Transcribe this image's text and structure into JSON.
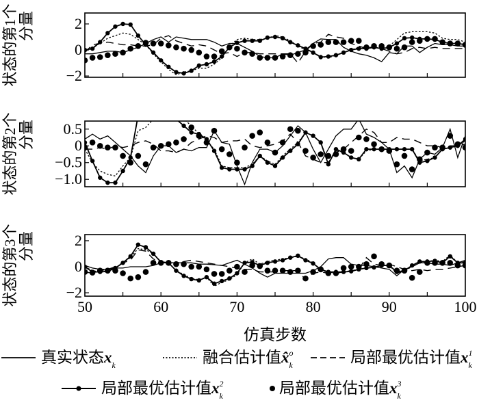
{
  "chart_data": {
    "type": "line",
    "xlabel": "仿真步数",
    "x_range": [
      50,
      100
    ],
    "x_ticks": [
      "50",
      "60",
      "70",
      "80",
      "90",
      "100"
    ],
    "legend_placement": "bottom",
    "legend": [
      {
        "key": "true",
        "label": "真实状态",
        "sym": "x",
        "sup": "",
        "sub": "k",
        "style": "solid"
      },
      {
        "key": "fused",
        "label": "融合估计值",
        "sym": "x̂",
        "sup": "o",
        "sub": "k",
        "style": "dotted"
      },
      {
        "key": "x1",
        "label": "局部最优估计值",
        "sym": "x",
        "sup": "1",
        "sub": "k",
        "style": "dashed"
      },
      {
        "key": "x2",
        "label": "局部最优估计值",
        "sym": "x",
        "sup": "2",
        "sub": "k",
        "style": "line-dot"
      },
      {
        "key": "x3",
        "label": "局部最优估计值",
        "sym": "x",
        "sup": "3",
        "sub": "k",
        "style": "dot"
      }
    ],
    "panels": [
      {
        "ylabel_line1": "状态的第1个",
        "ylabel_line2": "分量",
        "ylim": [
          -2.1,
          2.84
        ],
        "y_ticks": [
          {
            "v": 2,
            "t": "2"
          },
          {
            "v": 0,
            "t": "0"
          },
          {
            "v": -2,
            "t": "−2"
          }
        ],
        "series": {
          "true": [
            -0.3,
            -0.3,
            -0.2,
            -0.1,
            -0.1,
            -0.2,
            0,
            0.2,
            0.5,
            0.8,
            1.0,
            0.6,
            1.0,
            0.9,
            0.8,
            0.8,
            0.8,
            0.6,
            0.3,
            0.5,
            0.5,
            0.2,
            -0.1,
            -0.5,
            -0.6,
            -0.6,
            -0.3,
            -0.4,
            -0.2,
            0,
            0.5,
            0.85,
            0.8,
            0.8,
            0.2,
            -0.1,
            -0.3,
            -0.4,
            -0.6,
            -0.9,
            -0.2,
            -0.3,
            0.3,
            0.3,
            -0.2,
            0.2,
            0.5,
            0.4,
            0.4,
            0.3,
            0.3
          ],
          "fused": [
            0,
            0.2,
            0.5,
            0.9,
            1.1,
            1.3,
            1.2,
            0.8,
            0.4,
            -0.3,
            -0.9,
            -1.5,
            -1.9,
            -1.7,
            -1.6,
            -1.4,
            -1.4,
            -1.1,
            -0.6,
            0.3,
            0.8,
            0.9,
            0.8,
            0.8,
            0.9,
            1.1,
            1.0,
            0.7,
            0.3,
            0,
            -0.2,
            -0.5,
            -0.6,
            -0.4,
            -0.2,
            0,
            0.2,
            0.2,
            0.2,
            0.1,
            0.3,
            0.8,
            1.3,
            1.4,
            1.4,
            1.4,
            1.3,
            0.9,
            0.8,
            0.8,
            0.6
          ],
          "x1": [
            -0.2,
            0.4,
            0.5,
            0.6,
            0.5,
            0.4,
            0.4,
            0.3,
            0.3,
            0.4,
            0.9,
            1.1,
            0.7,
            0.5,
            0.3,
            0.4,
            0.3,
            0,
            -0.3,
            -0.2,
            -0.5,
            -0.2,
            -0.2,
            -0.3,
            -0.3,
            -0.3,
            -0.3,
            -0.3,
            -1.0,
            -0.1,
            0.5,
            0.6,
            1.2,
            1.0,
            0.9,
            0.5,
            0.3,
            0.1,
            0.2,
            0.1,
            -0.1,
            -0.3,
            -0.2,
            0.1,
            0.2,
            0.1,
            0.2,
            0.1,
            0.1,
            0.1,
            0.1
          ],
          "x2": [
            0,
            0.1,
            0.6,
            1.3,
            1.8,
            2.0,
            1.95,
            1.1,
            0.4,
            -0.2,
            -0.8,
            -1.3,
            -1.7,
            -1.8,
            -1.6,
            -1.2,
            -1.1,
            -0.9,
            -0.5,
            0.2,
            0.55,
            0.7,
            0.7,
            0.7,
            0.95,
            1.0,
            0.9,
            0.6,
            0.35,
            0.1,
            -0.2,
            -0.55,
            -0.5,
            -0.4,
            -0.2,
            0,
            0.1,
            0.1,
            0.2,
            0.1,
            0.2,
            0.5,
            0.9,
            0.95,
            0.85,
            0.85,
            0.8,
            0.6,
            0.5,
            0.5,
            0.4
          ],
          "x3": [
            -0.8,
            -0.6,
            -0.55,
            -0.4,
            -0.3,
            -0.2,
            0.1,
            0.3,
            0.55,
            0.5,
            0.5,
            0.35,
            0.2,
            0.1,
            0,
            -0.2,
            -0.5,
            -0.5,
            -0.1,
            0.2,
            0.1,
            -0.2,
            -0.3,
            -0.6,
            -0.6,
            -0.6,
            -0.5,
            -0.4,
            -0.3,
            -0.2,
            0.3,
            0.4,
            0.6,
            0.6,
            0.6,
            0.7,
            0.7,
            0.2,
            0.3,
            0.3,
            0.2,
            0.1,
            0.2,
            0.6,
            0.7,
            0.85,
            0.85,
            0.6,
            0.5,
            0.5,
            0.4
          ]
        }
      },
      {
        "ylabel_line1": "状态的第2个",
        "ylabel_line2": "分量",
        "ylim": [
          -1.22,
          0.74
        ],
        "y_ticks": [
          {
            "v": 0.5,
            "t": "0.5"
          },
          {
            "v": 0,
            "t": "0"
          },
          {
            "v": -0.5,
            "t": "−0.5"
          },
          {
            "v": -1,
            "t": "−1.0"
          }
        ],
        "series": {
          "true": [
            0.2,
            0.35,
            0.2,
            0.3,
            0.1,
            -0.1,
            -0.3,
            -0.6,
            -0.8,
            -0.3,
            0,
            0,
            -0.2,
            -0.1,
            -0.15,
            -0.05,
            -0.05,
            0.45,
            0.1,
            0.05,
            -0.6,
            -1.15,
            -0.5,
            -0.1,
            -0.1,
            -0.2,
            0,
            0.3,
            0.6,
            0.4,
            -0.1,
            -0.5,
            -0.1,
            0.3,
            0.5,
            0.5,
            0.8,
            0.35,
            0.25,
            0.1,
            -0.1,
            -0.8,
            -0.6,
            -0.95,
            -0.4,
            -0.2,
            -0.25,
            -0.05,
            0.5,
            -0.35,
            0.3
          ],
          "fused": [
            -0.1,
            -0.5,
            -0.75,
            -0.85,
            -0.9,
            -0.6,
            -0.35,
            0.45,
            0.55,
            0.8,
            1.0,
            1.0,
            0.9,
            0.8,
            0.6,
            0.35,
            0.15,
            -0.1,
            -0.6,
            -0.65,
            -0.65,
            -0.65,
            -0.55,
            -0.3,
            -0.45,
            -0.55,
            -0.3,
            -0.1,
            0.1,
            0.4,
            0.3,
            0.1,
            -0.5,
            -0.15,
            -0.2,
            -0.35,
            -0.4,
            -0.15,
            -0.1,
            -0.1,
            -0.1,
            -0.1,
            -0.1,
            -0.1,
            -0.45,
            -0.4,
            -0.35,
            -0.1,
            -0.05,
            0,
            0.15
          ],
          "x1": [
            -0.1,
            -0.1,
            -0.05,
            -0.1,
            0,
            -0.05,
            0,
            0.1,
            0.15,
            0.05,
            -0.15,
            -0.15,
            -0.2,
            -0.1,
            0.1,
            0.2,
            0.3,
            0.25,
            0.1,
            0.15,
            0.15,
            0.2,
            0,
            -0.05,
            0,
            0.05,
            0.15,
            0.35,
            0.1,
            -0.3,
            -0.4,
            -0.5,
            -0.5,
            -0.2,
            -0.1,
            0.1,
            0.3,
            0.5,
            0.4,
            0.1,
            0.1,
            0.25,
            0.2,
            0.2,
            0.1,
            0,
            0,
            -0.05,
            0,
            0,
            0.05
          ],
          "x2": [
            0.1,
            -0.45,
            -0.95,
            -1.1,
            -1.1,
            -0.75,
            -0.35,
            0.9,
            1.2,
            1.3,
            1.2,
            1.0,
            0.8,
            0.6,
            0.4,
            0.35,
            0.2,
            -0.15,
            -0.65,
            -0.7,
            -0.7,
            -0.7,
            -0.6,
            -0.3,
            -0.5,
            -0.6,
            -0.35,
            -0.15,
            0.05,
            0.4,
            0.3,
            0.1,
            -0.55,
            -0.1,
            -0.2,
            -0.35,
            -0.4,
            -0.1,
            -0.1,
            -0.1,
            -0.1,
            -0.1,
            -0.1,
            -0.1,
            -0.5,
            -0.45,
            -0.35,
            -0.1,
            -0.05,
            0,
            0.2
          ],
          "x3": [
            -0.05,
            0.1,
            0,
            -0.05,
            -0.05,
            -0.3,
            -0.5,
            -0.3,
            -0.55,
            -0.05,
            0,
            0.05,
            0.1,
            0.2,
            0.55,
            0.3,
            0.1,
            0.45,
            -0.1,
            -0.25,
            -0.5,
            -0.05,
            0.3,
            0.4,
            0.1,
            -0.2,
            0.1,
            0.5,
            0.45,
            -0.15,
            -0.35,
            -0.25,
            -0.3,
            -0.25,
            -0.1,
            -0.15,
            0.25,
            0.2,
            0.05,
            -0.1,
            -0.15,
            -0.55,
            -0.3,
            -0.7,
            -0.4,
            -0.2,
            -0.05,
            -0.05,
            0.3,
            0.05,
            -0.05
          ]
        }
      },
      {
        "ylabel_line1": "状态的第3个",
        "ylabel_line2": "分量",
        "ylim": [
          -2.26,
          2.47
        ],
        "y_ticks": [
          {
            "v": 2,
            "t": "2"
          },
          {
            "v": 0,
            "t": "0"
          },
          {
            "v": -2,
            "t": "−2"
          }
        ],
        "series": {
          "true": [
            0.1,
            -0.1,
            -0.2,
            -0.2,
            -0.1,
            -0.1,
            0,
            0,
            0,
            0.1,
            0.3,
            0.3,
            0.3,
            0.3,
            0.3,
            0.2,
            0.2,
            0.15,
            0.1,
            0.3,
            0.5,
            0.2,
            -0.1,
            -0.5,
            -0.8,
            -0.5,
            -0.5,
            -0.5,
            -0.5,
            -0.5,
            -0.3,
            0,
            0.6,
            0.7,
            0.7,
            0.2,
            0.1,
            0.1,
            0,
            -0.1,
            -0.2,
            -0.7,
            -0.2,
            0,
            0.3,
            0.3,
            0.2,
            0.2,
            0.1,
            0.3,
            0.5
          ],
          "fused": [
            0,
            -0.3,
            -0.4,
            -0.3,
            -0.1,
            0.3,
            0.7,
            1.4,
            1.3,
            1.0,
            0.4,
            0.3,
            -0.3,
            -0.6,
            -0.9,
            -1.0,
            -0.8,
            -1.5,
            -1.2,
            -1.0,
            -0.6,
            0.3,
            0.6,
            0.2,
            0.4,
            0.5,
            0.6,
            0.7,
            0.8,
            0.6,
            0.3,
            -0.3,
            -0.4,
            -0.5,
            -0.4,
            -0.35,
            -0.2,
            -0.1,
            -0.05,
            0.1,
            0.1,
            -0.5,
            -0.3,
            0,
            0.3,
            0.4,
            0.5,
            0.4,
            0.9,
            0.3,
            0.4
          ],
          "x1": [
            -0.4,
            -0.5,
            -0.3,
            -0.2,
            0,
            0.3,
            0.5,
            1.3,
            1.2,
            0.6,
            0.3,
            0.3,
            0.3,
            0.4,
            0.5,
            0.4,
            0.3,
            0.2,
            0.1,
            0,
            -0.1,
            -0.2,
            -0.2,
            -0.4,
            -0.4,
            -0.4,
            -0.3,
            -0.3,
            -0.3,
            -1.0,
            -0.5,
            -0.4,
            -0.5,
            -0.5,
            -0.4,
            -0.3,
            -0.2,
            0.7,
            0.2,
            0.1,
            0.2,
            0,
            -0.2,
            -0.3,
            -0.2,
            -0.3,
            -0.2,
            -0.2,
            -0.1,
            0,
            0.1
          ],
          "x2": [
            0,
            -0.4,
            -0.4,
            -0.35,
            -0.1,
            0.3,
            0.8,
            1.7,
            1.5,
            1.0,
            0.35,
            0.3,
            -0.3,
            -0.7,
            -0.95,
            -1.05,
            -0.8,
            -1.3,
            -1.1,
            -0.9,
            -0.5,
            0.3,
            0.35,
            0.1,
            0.3,
            0.4,
            0.5,
            0.7,
            0.85,
            0.5,
            0.25,
            -0.2,
            -0.4,
            -0.4,
            -0.4,
            -0.35,
            -0.2,
            -0.1,
            -0.05,
            0.1,
            0.1,
            -0.4,
            -0.3,
            0.1,
            0.4,
            0.4,
            0.45,
            0.3,
            0.8,
            0.3,
            0.3
          ],
          "x3": [
            -0.4,
            -0.45,
            -0.3,
            -0.3,
            -0.3,
            -0.5,
            -0.9,
            -0.8,
            -0.4,
            0.3,
            0.3,
            0.3,
            0.2,
            0.2,
            0,
            0,
            -0.2,
            -0.55,
            -0.55,
            -0.3,
            0,
            -0.4,
            0.1,
            0.05,
            -0.3,
            -0.3,
            -0.3,
            -0.4,
            -0.3,
            -0.9,
            -0.4,
            -0.2,
            -0.5,
            -0.5,
            -0.1,
            0,
            0,
            0.2,
            0.8,
            0.2,
            0.1,
            -0.3,
            -0.3,
            -0.85,
            -0.4,
            0.3,
            0.3,
            0.3,
            0.3,
            0.1,
            0.1
          ]
        }
      }
    ]
  }
}
